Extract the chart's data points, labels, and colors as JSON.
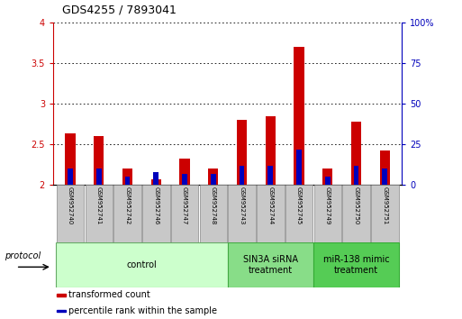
{
  "title": "GDS4255 / 7893041",
  "samples": [
    "GSM952740",
    "GSM952741",
    "GSM952742",
    "GSM952746",
    "GSM952747",
    "GSM952748",
    "GSM952743",
    "GSM952744",
    "GSM952745",
    "GSM952749",
    "GSM952750",
    "GSM952751"
  ],
  "red_values": [
    2.63,
    2.6,
    2.2,
    2.07,
    2.33,
    2.2,
    2.8,
    2.85,
    3.7,
    2.2,
    2.78,
    2.42
  ],
  "blue_values": [
    10,
    10,
    5,
    8,
    7,
    7,
    12,
    12,
    22,
    5,
    12,
    10
  ],
  "baseline": 2.0,
  "ylim_left": [
    2,
    4
  ],
  "ylim_right": [
    0,
    100
  ],
  "yticks_left": [
    2,
    2.5,
    3,
    3.5,
    4
  ],
  "ytick_labels_left": [
    "2",
    "2.5",
    "3",
    "3.5",
    "4"
  ],
  "yticks_right": [
    0,
    25,
    50,
    75,
    100
  ],
  "ytick_labels_right": [
    "0",
    "25",
    "50",
    "75",
    "100%"
  ],
  "red_color": "#cc0000",
  "blue_color": "#0000bb",
  "red_bar_width": 0.35,
  "blue_bar_width": 0.18,
  "groups": [
    {
      "label": "control",
      "indices": [
        0,
        1,
        2,
        3,
        4,
        5
      ],
      "color": "#ccffcc",
      "edge": "#66aa66"
    },
    {
      "label": "SIN3A siRNA\ntreatment",
      "indices": [
        6,
        7,
        8
      ],
      "color": "#88dd88",
      "edge": "#44aa44"
    },
    {
      "label": "miR-138 mimic\ntreatment",
      "indices": [
        9,
        10,
        11
      ],
      "color": "#55cc55",
      "edge": "#33aa33"
    }
  ],
  "legend_items": [
    {
      "label": "transformed count",
      "color": "#cc0000"
    },
    {
      "label": "percentile rank within the sample",
      "color": "#0000bb"
    }
  ],
  "protocol_label": "protocol",
  "sample_box_color": "#c8c8c8",
  "sample_box_edge": "#888888",
  "title_fontsize": 9,
  "tick_fontsize": 7,
  "sample_fontsize": 5,
  "group_fontsize": 7,
  "legend_fontsize": 7
}
